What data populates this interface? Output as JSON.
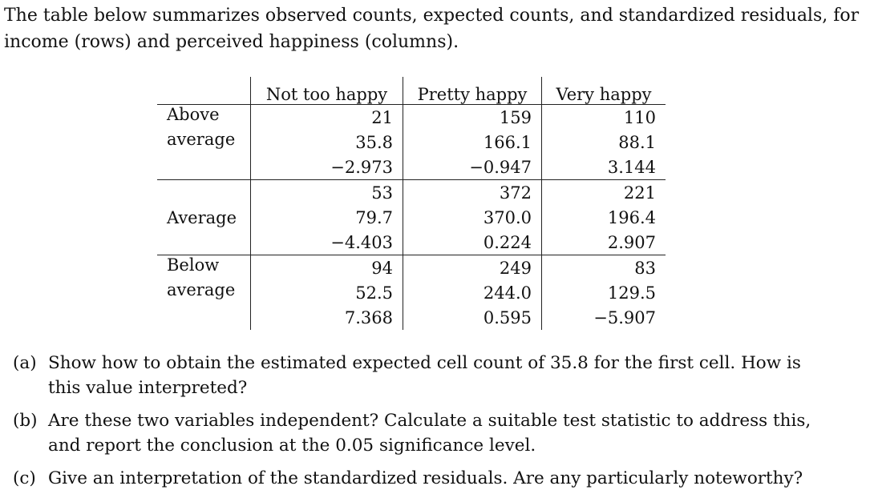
{
  "intro": "The table below summarizes observed counts, expected counts, and standardized residuals, for income (rows) and perceived happiness (columns).",
  "columns": [
    "Not too happy",
    "Pretty happy",
    "Very happy"
  ],
  "rows": [
    {
      "label_line1": "Above",
      "label_line2": "average",
      "observed": [
        "21",
        "159",
        "110"
      ],
      "expected": [
        "35.8",
        "166.1",
        "88.1"
      ],
      "residual": [
        "−2.973",
        "−0.947",
        "3.144"
      ]
    },
    {
      "label_line1": "",
      "label_line2": "Average",
      "observed": [
        "53",
        "372",
        "221"
      ],
      "expected": [
        "79.7",
        "370.0",
        "196.4"
      ],
      "residual": [
        "−4.403",
        "0.224",
        "2.907"
      ]
    },
    {
      "label_line1": "Below",
      "label_line2": "average",
      "observed": [
        "94",
        "249",
        "83"
      ],
      "expected": [
        "52.5",
        "244.0",
        "129.5"
      ],
      "residual": [
        "7.368",
        "0.595",
        "−5.907"
      ]
    }
  ],
  "questions": [
    {
      "marker": "(a)",
      "text": "Show how to obtain the estimated expected cell count of 35.8 for the first cell. How is this value interpreted?"
    },
    {
      "marker": "(b)",
      "text": "Are these two variables independent? Calculate a suitable test statistic to address this, and report the conclusion at the 0.05 significance level."
    },
    {
      "marker": "(c)",
      "text": "Give an interpretation of the standardized residuals. Are any particularly noteworthy?"
    }
  ]
}
